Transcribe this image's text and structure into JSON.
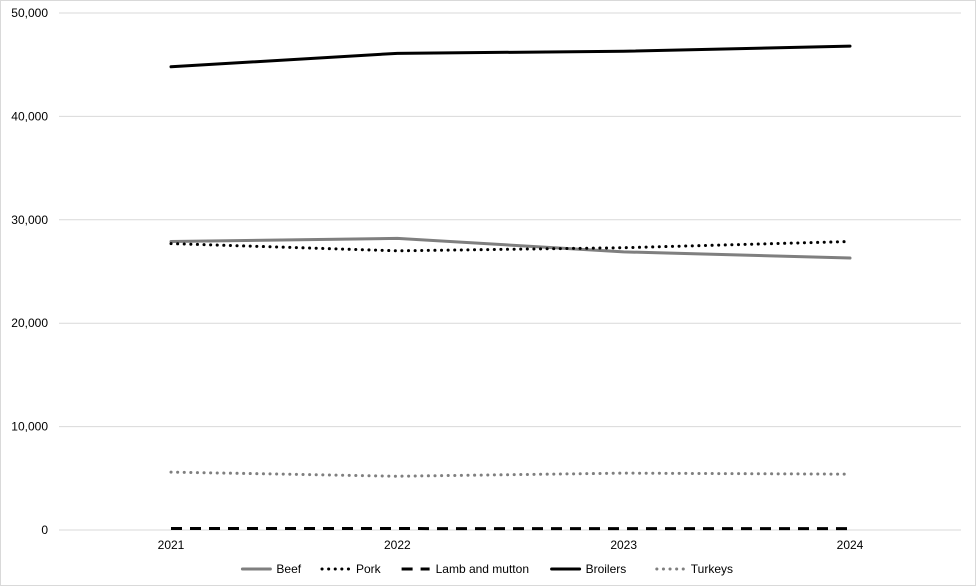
{
  "chart_data": {
    "type": "line",
    "title": "",
    "xlabel": "",
    "ylabel": "",
    "categories": [
      "2021",
      "2022",
      "2023",
      "2024"
    ],
    "ylim": [
      0,
      50000
    ],
    "yticks": [
      0,
      10000,
      20000,
      30000,
      40000,
      50000
    ],
    "ytick_labels": [
      "0",
      "10,000",
      "20,000",
      "30,000",
      "40,000",
      "50,000"
    ],
    "grid": "horizontal",
    "legend_position": "bottom",
    "series": [
      {
        "name": "Beef",
        "values": [
          27900,
          28200,
          26900,
          26300
        ],
        "color": "#7f7f7f",
        "style": "solid"
      },
      {
        "name": "Pork",
        "values": [
          27700,
          27000,
          27300,
          27900
        ],
        "color": "#000000",
        "style": "dotted"
      },
      {
        "name": "Lamb and mutton",
        "values": [
          140,
          140,
          130,
          130
        ],
        "color": "#000000",
        "style": "dashed"
      },
      {
        "name": "Broilers",
        "values": [
          44800,
          46100,
          46300,
          46800
        ],
        "color": "#000000",
        "style": "solid"
      },
      {
        "name": "Turkeys",
        "values": [
          5600,
          5200,
          5500,
          5400
        ],
        "color": "#7f7f7f",
        "style": "dotted"
      }
    ]
  }
}
